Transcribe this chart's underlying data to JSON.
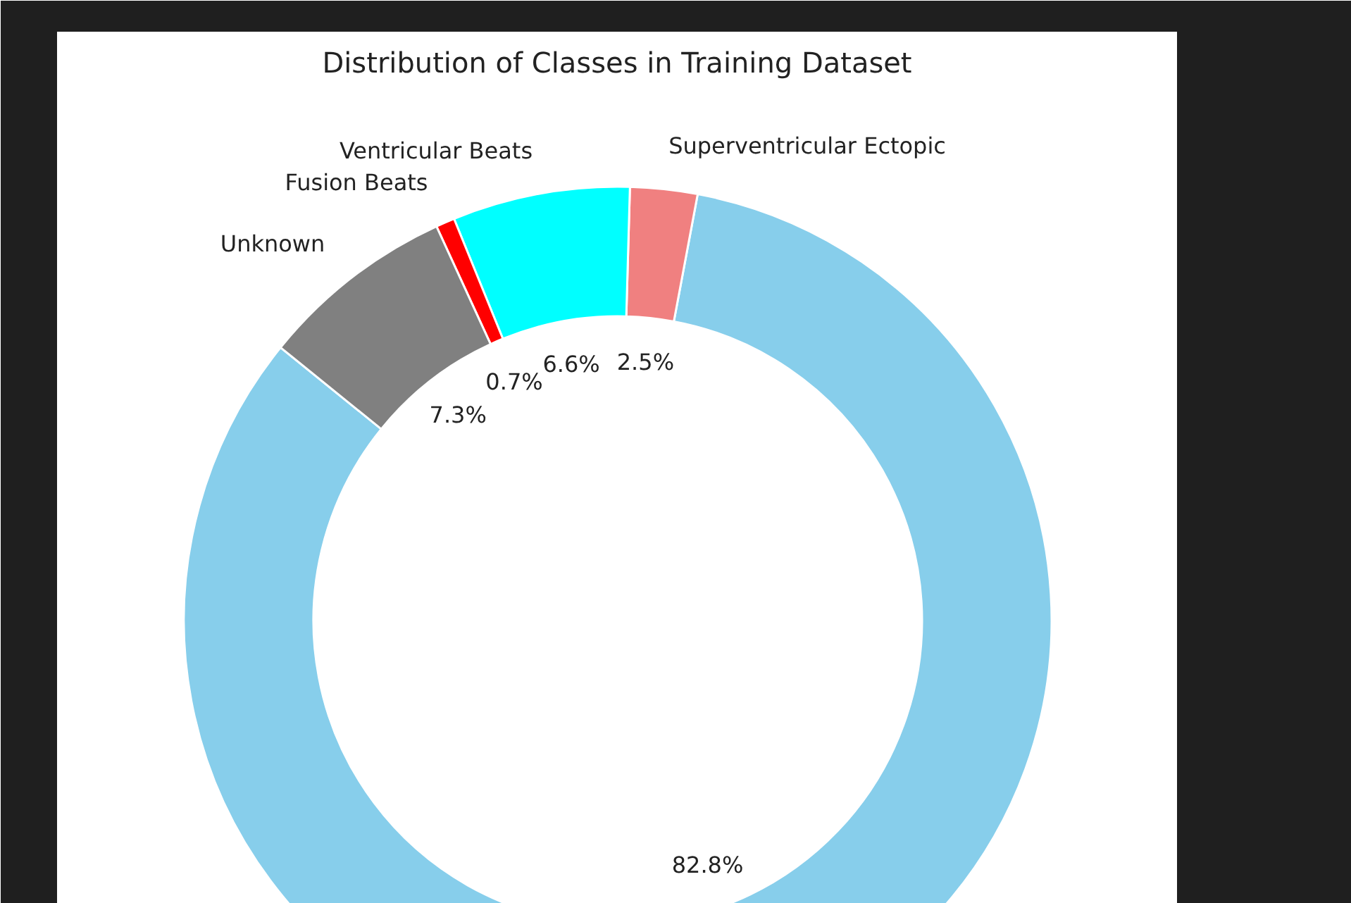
{
  "chart_data": {
    "type": "donut",
    "title": "Distribution of Classes in Training Dataset",
    "categories": [
      null,
      "Superventricular Ectopic",
      "Ventricular Beats",
      "Fusion Beats",
      "Unknown"
    ],
    "values": [
      82.8,
      2.5,
      6.6,
      0.7,
      7.3
    ],
    "colors": [
      "#87ceeb",
      "#f08080",
      "#00ffff",
      "#ff0000",
      "#808080"
    ],
    "value_labels": [
      "82.8%",
      "2.5%",
      "6.6%",
      "0.7%",
      "7.3%"
    ]
  }
}
